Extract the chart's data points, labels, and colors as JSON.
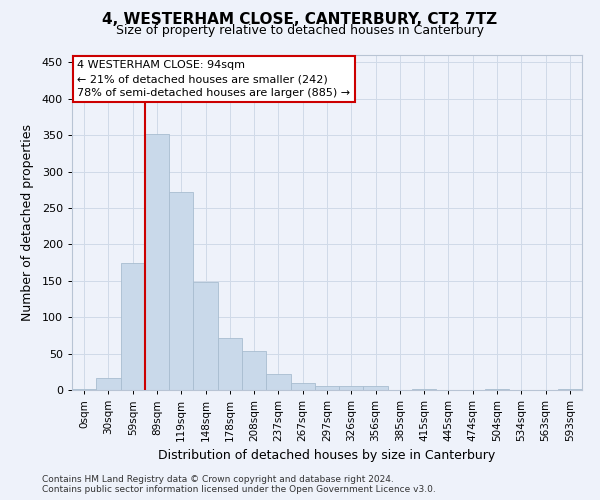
{
  "title": "4, WESTERHAM CLOSE, CANTERBURY, CT2 7TZ",
  "subtitle": "Size of property relative to detached houses in Canterbury",
  "xlabel": "Distribution of detached houses by size in Canterbury",
  "ylabel": "Number of detached properties",
  "footer_line1": "Contains HM Land Registry data © Crown copyright and database right 2024.",
  "footer_line2": "Contains public sector information licensed under the Open Government Licence v3.0.",
  "bar_labels": [
    "0sqm",
    "30sqm",
    "59sqm",
    "89sqm",
    "119sqm",
    "148sqm",
    "178sqm",
    "208sqm",
    "237sqm",
    "267sqm",
    "297sqm",
    "326sqm",
    "356sqm",
    "385sqm",
    "415sqm",
    "445sqm",
    "474sqm",
    "504sqm",
    "534sqm",
    "563sqm",
    "593sqm"
  ],
  "bar_heights": [
    2,
    16,
    175,
    352,
    272,
    148,
    72,
    54,
    22,
    10,
    6,
    6,
    6,
    0,
    2,
    0,
    0,
    2,
    0,
    0,
    2
  ],
  "bar_color": "#c9d9ea",
  "bar_edge_color": "#a8bdd0",
  "red_line_index": 3,
  "annotation_text_line1": "4 WESTERHAM CLOSE: 94sqm",
  "annotation_text_line2": "← 21% of detached houses are smaller (242)",
  "annotation_text_line3": "78% of semi-detached houses are larger (885) →",
  "annotation_box_color": "#ffffff",
  "annotation_box_edge": "#cc0000",
  "red_line_color": "#cc0000",
  "grid_color": "#d0dae8",
  "background_color": "#eef2fa",
  "ylim": [
    0,
    460
  ],
  "yticks": [
    0,
    50,
    100,
    150,
    200,
    250,
    300,
    350,
    400,
    450
  ],
  "title_fontsize": 11,
  "subtitle_fontsize": 9,
  "xlabel_fontsize": 9,
  "ylabel_fontsize": 9,
  "tick_fontsize": 8,
  "xtick_fontsize": 7.5,
  "footer_fontsize": 6.5
}
